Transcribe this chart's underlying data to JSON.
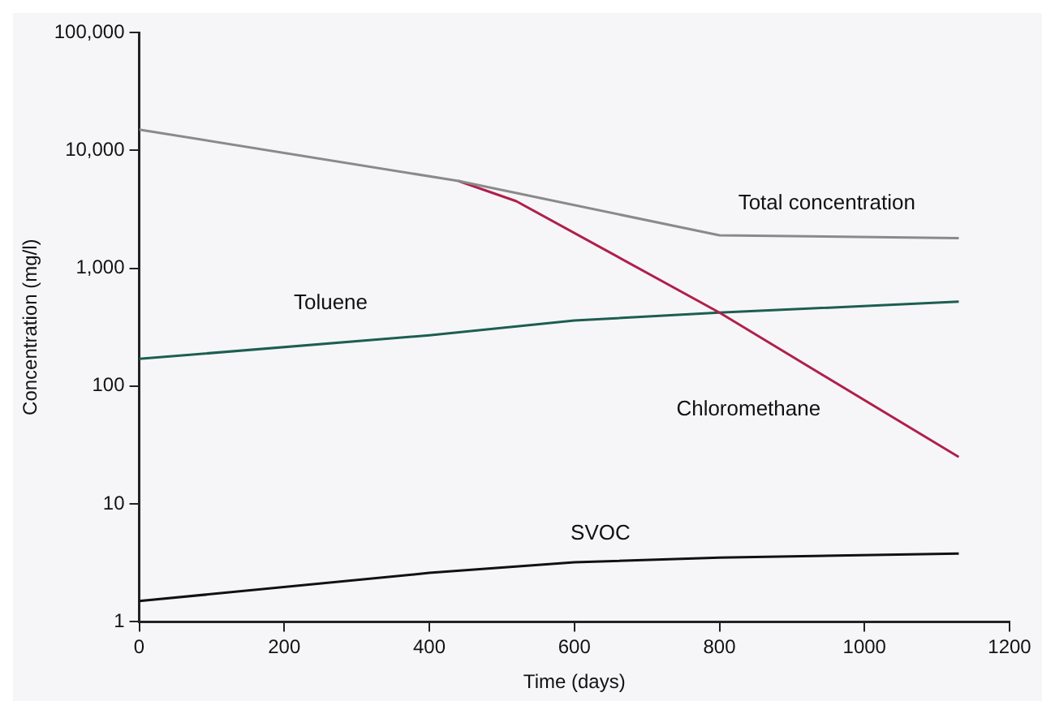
{
  "chart_data": {
    "type": "line",
    "xlabel": "Time (days)",
    "ylabel": "Concentration (mg/l)",
    "log": "y",
    "grid": false,
    "legend": false,
    "marker": "none",
    "line_style": "solid",
    "xlim": [
      0,
      1200
    ],
    "xticks": [
      0,
      200,
      400,
      600,
      800,
      1000,
      1200
    ],
    "ylim": [
      1,
      100000
    ],
    "yticks": [
      1,
      10,
      100,
      {
        "value": 1000,
        "label": "1,000"
      },
      {
        "value": 10000,
        "label": "10,000"
      },
      {
        "value": 100000,
        "label": "100,000"
      }
    ],
    "series": [
      {
        "name": "Total concentration",
        "color": "#8a8a8a",
        "x": [
          0,
          440,
          800,
          1130
        ],
        "values": [
          15000,
          5500,
          1900,
          1800
        ]
      },
      {
        "name": "Chloromethane",
        "color": "#b0204a",
        "x": [
          440,
          520,
          800,
          1130
        ],
        "values": [
          5500,
          3700,
          420,
          25
        ]
      },
      {
        "name": "Toluene",
        "color": "#1d5e50",
        "x": [
          0,
          400,
          600,
          800,
          1130
        ],
        "values": [
          170,
          270,
          360,
          420,
          520
        ]
      },
      {
        "name": "SVOC",
        "color": "#111111",
        "x": [
          0,
          400,
          600,
          800,
          1130
        ],
        "values": [
          1.5,
          2.6,
          3.2,
          3.5,
          3.8
        ]
      }
    ]
  }
}
